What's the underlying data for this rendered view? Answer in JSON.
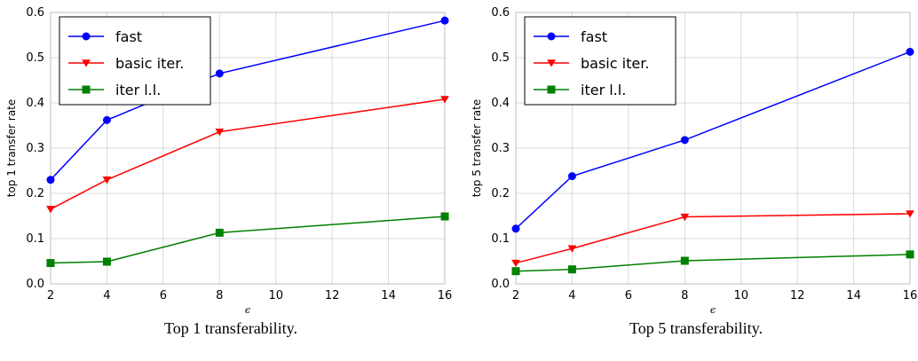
{
  "chart_data": [
    {
      "type": "line",
      "title": "",
      "caption": "Top 1 transferability.",
      "xlabel": "ϵ",
      "ylabel": "top 1 transfer rate",
      "xlim": [
        2,
        16
      ],
      "ylim": [
        0.0,
        0.6
      ],
      "xticks": [
        "2",
        "4",
        "6",
        "8",
        "10",
        "12",
        "14",
        "16"
      ],
      "yticks": [
        "0.0",
        "0.1",
        "0.2",
        "0.3",
        "0.4",
        "0.5",
        "0.6"
      ],
      "grid": true,
      "legend_position": "top-left",
      "x": [
        2,
        4,
        8,
        16
      ],
      "series": [
        {
          "name": "fast",
          "color": "#0000ff",
          "marker": "circle",
          "values": [
            0.23,
            0.362,
            0.465,
            0.582
          ]
        },
        {
          "name": "basic iter.",
          "color": "#ff0000",
          "marker": "triangle-down",
          "values": [
            0.165,
            0.23,
            0.336,
            0.408
          ]
        },
        {
          "name": "iter l.l.",
          "color": "#008000",
          "marker": "square",
          "values": [
            0.046,
            0.049,
            0.113,
            0.149
          ]
        }
      ]
    },
    {
      "type": "line",
      "title": "",
      "caption": "Top 5 transferability.",
      "xlabel": "ϵ",
      "ylabel": "top 5 transfer rate",
      "xlim": [
        2,
        16
      ],
      "ylim": [
        0.0,
        0.6
      ],
      "xticks": [
        "2",
        "4",
        "6",
        "8",
        "10",
        "12",
        "14",
        "16"
      ],
      "yticks": [
        "0.0",
        "0.1",
        "0.2",
        "0.3",
        "0.4",
        "0.5",
        "0.6"
      ],
      "grid": true,
      "legend_position": "top-left",
      "x": [
        2,
        4,
        8,
        16
      ],
      "series": [
        {
          "name": "fast",
          "color": "#0000ff",
          "marker": "circle",
          "values": [
            0.122,
            0.238,
            0.318,
            0.513
          ]
        },
        {
          "name": "basic iter.",
          "color": "#ff0000",
          "marker": "triangle-down",
          "values": [
            0.046,
            0.078,
            0.148,
            0.155
          ]
        },
        {
          "name": "iter l.l.",
          "color": "#008000",
          "marker": "square",
          "values": [
            0.028,
            0.032,
            0.051,
            0.065
          ]
        }
      ]
    }
  ]
}
